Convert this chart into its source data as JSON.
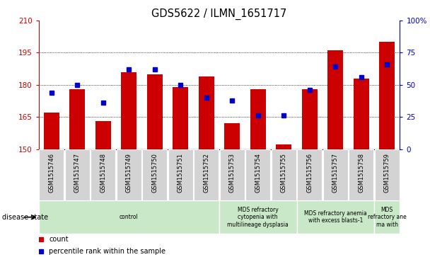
{
  "title": "GDS5622 / ILMN_1651717",
  "samples": [
    "GSM1515746",
    "GSM1515747",
    "GSM1515748",
    "GSM1515749",
    "GSM1515750",
    "GSM1515751",
    "GSM1515752",
    "GSM1515753",
    "GSM1515754",
    "GSM1515755",
    "GSM1515756",
    "GSM1515757",
    "GSM1515758",
    "GSM1515759"
  ],
  "counts": [
    167,
    178,
    163,
    186,
    185,
    179,
    184,
    162,
    178,
    152,
    178,
    196,
    183,
    200
  ],
  "percentile_ranks": [
    44,
    50,
    36,
    62,
    62,
    50,
    40,
    38,
    26,
    26,
    46,
    64,
    56,
    66
  ],
  "ylim_left": [
    150,
    210
  ],
  "ylim_right": [
    0,
    100
  ],
  "yticks_left": [
    150,
    165,
    180,
    195,
    210
  ],
  "yticks_right": [
    0,
    25,
    50,
    75,
    100
  ],
  "ytick_labels_right": [
    "0",
    "25",
    "50",
    "75",
    "100%"
  ],
  "bar_color": "#cc0000",
  "dot_color": "#0000cc",
  "ds_groups": [
    {
      "label": "control",
      "start": 0,
      "end": 7
    },
    {
      "label": "MDS refractory\ncytopenia with\nmultilineage dysplasia",
      "start": 7,
      "end": 10
    },
    {
      "label": "MDS refractory anemia\nwith excess blasts-1",
      "start": 10,
      "end": 13
    },
    {
      "label": "MDS\nrefractory ane\nma with",
      "start": 13,
      "end": 14
    }
  ],
  "legend_count_label": "count",
  "legend_pct_label": "percentile rank within the sample",
  "disease_state_label": "disease state"
}
